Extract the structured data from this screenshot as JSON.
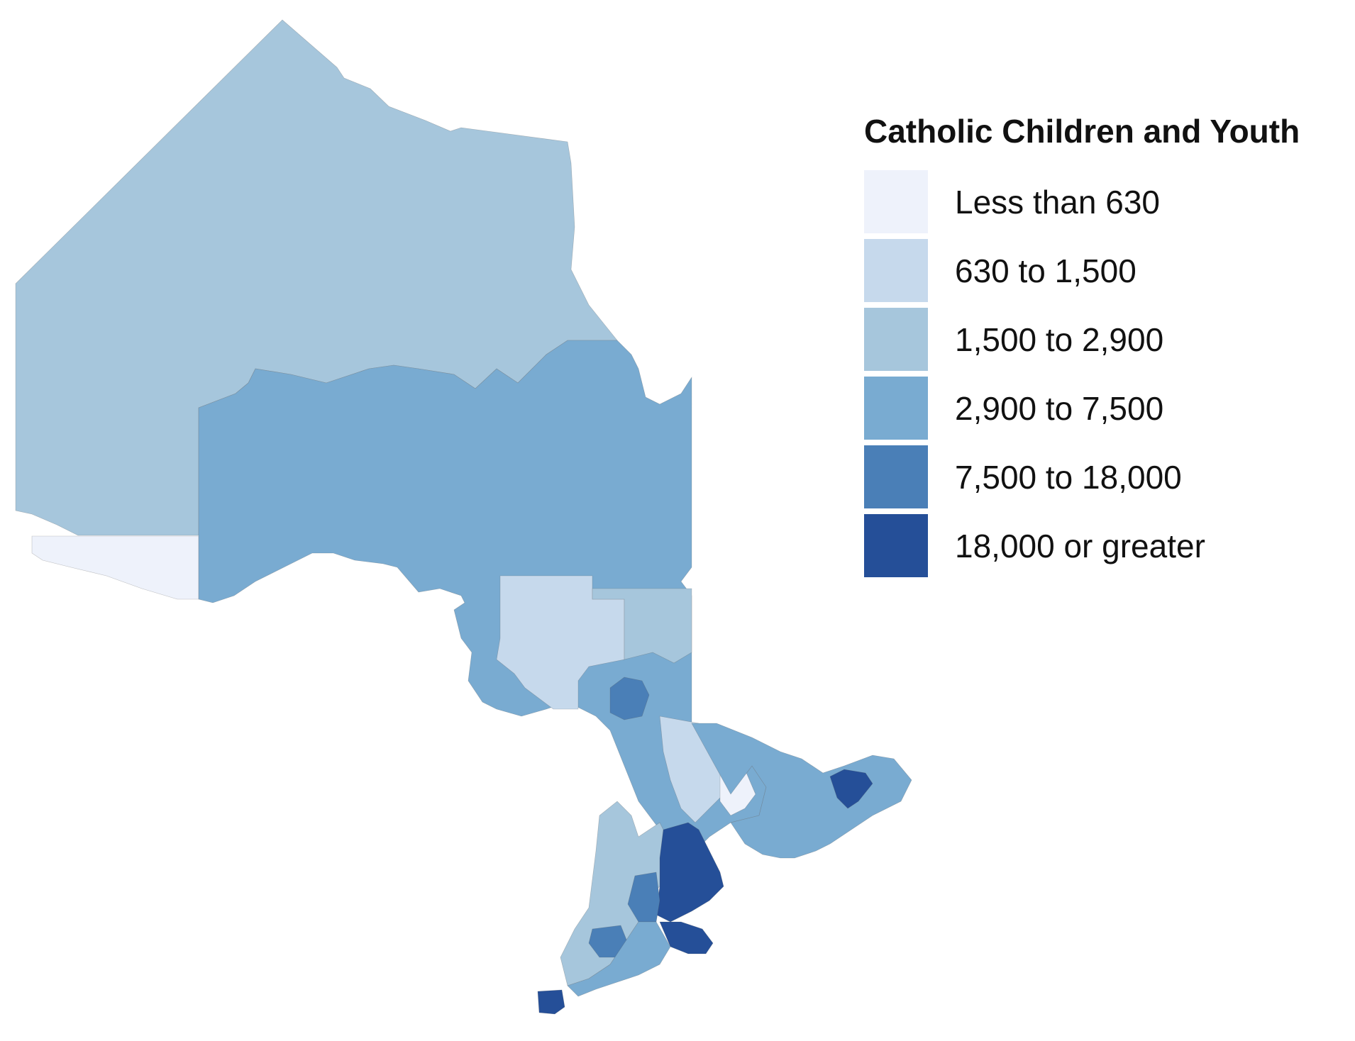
{
  "legend": {
    "title": "Catholic Children and Youth",
    "classes": [
      {
        "label": "Less than 630",
        "color": "#eef2fb"
      },
      {
        "label": "630 to 1,500",
        "color": "#c6d9ec"
      },
      {
        "label": "1,500 to 2,900",
        "color": "#a6c6dc"
      },
      {
        "label": "2,900 to 7,500",
        "color": "#79abd1"
      },
      {
        "label": "7,500 to 18,000",
        "color": "#4a7fb7"
      },
      {
        "label": "18,000 or greater",
        "color": "#254f98"
      }
    ]
  },
  "map": {
    "region": "Ontario",
    "outline_color": "#555555",
    "water_color": "#ffffff"
  }
}
